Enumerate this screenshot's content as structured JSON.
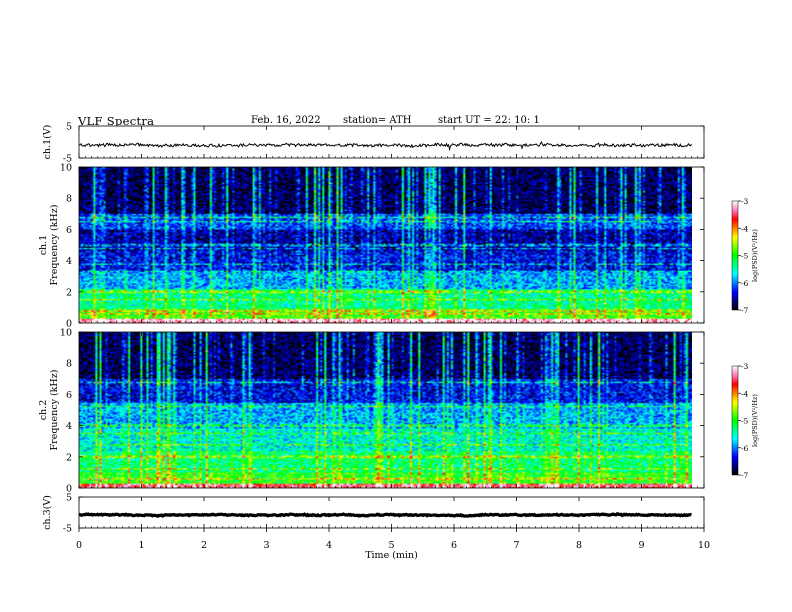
{
  "header": {
    "title": "VLF  Spectra",
    "date": "Feb. 16, 2022",
    "station": "station= ATH",
    "start": "start  UT  =    22: 10: 1"
  },
  "chart_data": [
    {
      "type": "line",
      "name": "ch1-waveform",
      "ylabel": "ch.1(V)",
      "ylim": [
        -5,
        5
      ],
      "y_ticks": [
        "5",
        "-5"
      ],
      "x_range_min": [
        0,
        9.8
      ],
      "baseline_v": -1.0,
      "noise_v": 0.45
    },
    {
      "type": "heatmap",
      "name": "ch1-spectrogram",
      "ylabel": "ch.1\nFrequency  (kHz)",
      "ylim": [
        0,
        10
      ],
      "y_ticks": [
        "0",
        "2",
        "4",
        "6",
        "8",
        "10"
      ],
      "x_range_min": [
        0,
        9.8
      ],
      "colorbar": {
        "label": "log(PSD)(V²/Hz)",
        "range": [
          -7,
          -3
        ],
        "ticks": [
          "-3",
          "-4",
          "-5",
          "-6",
          "-7"
        ],
        "colors": [
          "#000000",
          "#000080",
          "#0000ff",
          "#0080ff",
          "#00ffff",
          "#00ff80",
          "#00ff00",
          "#80ff00",
          "#ffff00",
          "#ff8000",
          "#ff0000",
          "#ff80c0",
          "#ffffff"
        ]
      },
      "bands_khz_level": [
        {
          "f0": 0.0,
          "f1": 0.3,
          "level": -3.2
        },
        {
          "f0": 0.3,
          "f1": 0.9,
          "level": -4.9
        },
        {
          "f0": 0.9,
          "f1": 2.2,
          "level": -5.4
        },
        {
          "f0": 2.2,
          "f1": 3.3,
          "level": -5.9
        },
        {
          "f0": 3.3,
          "f1": 4.6,
          "level": -6.4
        },
        {
          "f0": 4.6,
          "f1": 6.0,
          "level": -6.6
        },
        {
          "f0": 6.0,
          "f1": 7.0,
          "level": -6.2
        },
        {
          "f0": 7.0,
          "f1": 10.0,
          "level": -6.8
        }
      ],
      "lines_khz": [
        6.8,
        6.5,
        5.0,
        4.8,
        3.8,
        3.3,
        2.0,
        1.5,
        0.8,
        0.6
      ]
    },
    {
      "type": "heatmap",
      "name": "ch2-spectrogram",
      "ylabel": "ch.2\nFrequency  (kHz)",
      "ylim": [
        0,
        10
      ],
      "y_ticks": [
        "0",
        "2",
        "4",
        "6",
        "8",
        "10"
      ],
      "x_range_min": [
        0,
        9.8
      ],
      "colorbar": {
        "label": "log(PSD)(V²/Hz)",
        "range": [
          -7,
          -3
        ],
        "ticks": [
          "-3",
          "-4",
          "-5",
          "-6",
          "-7"
        ],
        "colors": [
          "#000000",
          "#000080",
          "#0000ff",
          "#0080ff",
          "#00ffff",
          "#00ff80",
          "#00ff00",
          "#80ff00",
          "#ffff00",
          "#ff8000",
          "#ff0000",
          "#ff80c0",
          "#ffffff"
        ]
      },
      "bands_khz_level": [
        {
          "f0": 0.0,
          "f1": 0.3,
          "level": -3.5
        },
        {
          "f0": 0.3,
          "f1": 1.0,
          "level": -5.0
        },
        {
          "f0": 1.0,
          "f1": 2.4,
          "level": -5.3
        },
        {
          "f0": 2.4,
          "f1": 3.8,
          "level": -5.6
        },
        {
          "f0": 3.8,
          "f1": 5.5,
          "level": -5.9
        },
        {
          "f0": 5.5,
          "f1": 7.0,
          "level": -6.4
        },
        {
          "f0": 7.0,
          "f1": 10.0,
          "level": -6.8
        }
      ],
      "lines_khz": [
        6.8,
        5.2,
        4.0,
        3.5,
        2.8,
        2.0,
        1.2,
        0.6
      ]
    },
    {
      "type": "line",
      "name": "ch3-waveform",
      "ylabel": "ch.3(V)",
      "ylim": [
        -5,
        5
      ],
      "y_ticks": [
        "5",
        "-5"
      ],
      "x_range_min": [
        0,
        9.8
      ],
      "baseline_v": -0.8,
      "noise_v": 0.15
    }
  ],
  "x_axis": {
    "label": "Time  (min)",
    "range": [
      0,
      10
    ],
    "ticks": [
      "0",
      "1",
      "2",
      "3",
      "4",
      "5",
      "6",
      "7",
      "8",
      "9",
      "10"
    ]
  }
}
